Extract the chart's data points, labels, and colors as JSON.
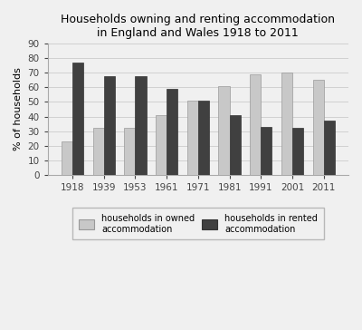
{
  "title": "Households owning and renting accommodation\nin England and Wales 1918 to 2011",
  "years": [
    "1918",
    "1939",
    "1953",
    "1961",
    "1971",
    "1981",
    "1991",
    "2001",
    "2011"
  ],
  "owned": [
    23,
    32,
    32,
    41,
    51,
    61,
    69,
    70,
    65
  ],
  "rented": [
    77,
    68,
    68,
    59,
    51,
    41,
    33,
    32,
    37
  ],
  "owned_color": "#c8c8c8",
  "rented_color": "#404040",
  "ylabel": "% of households",
  "ylim": [
    0,
    90
  ],
  "yticks": [
    0,
    10,
    20,
    30,
    40,
    50,
    60,
    70,
    80,
    90
  ],
  "legend_owned": "households in owned\naccommodation",
  "legend_rented": "households in rented\naccommodation",
  "bar_width": 0.35,
  "title_fontsize": 9,
  "axis_fontsize": 8,
  "tick_fontsize": 7.5,
  "legend_fontsize": 7,
  "background_color": "#f0f0f0",
  "plot_bg_color": "#f0f0f0"
}
